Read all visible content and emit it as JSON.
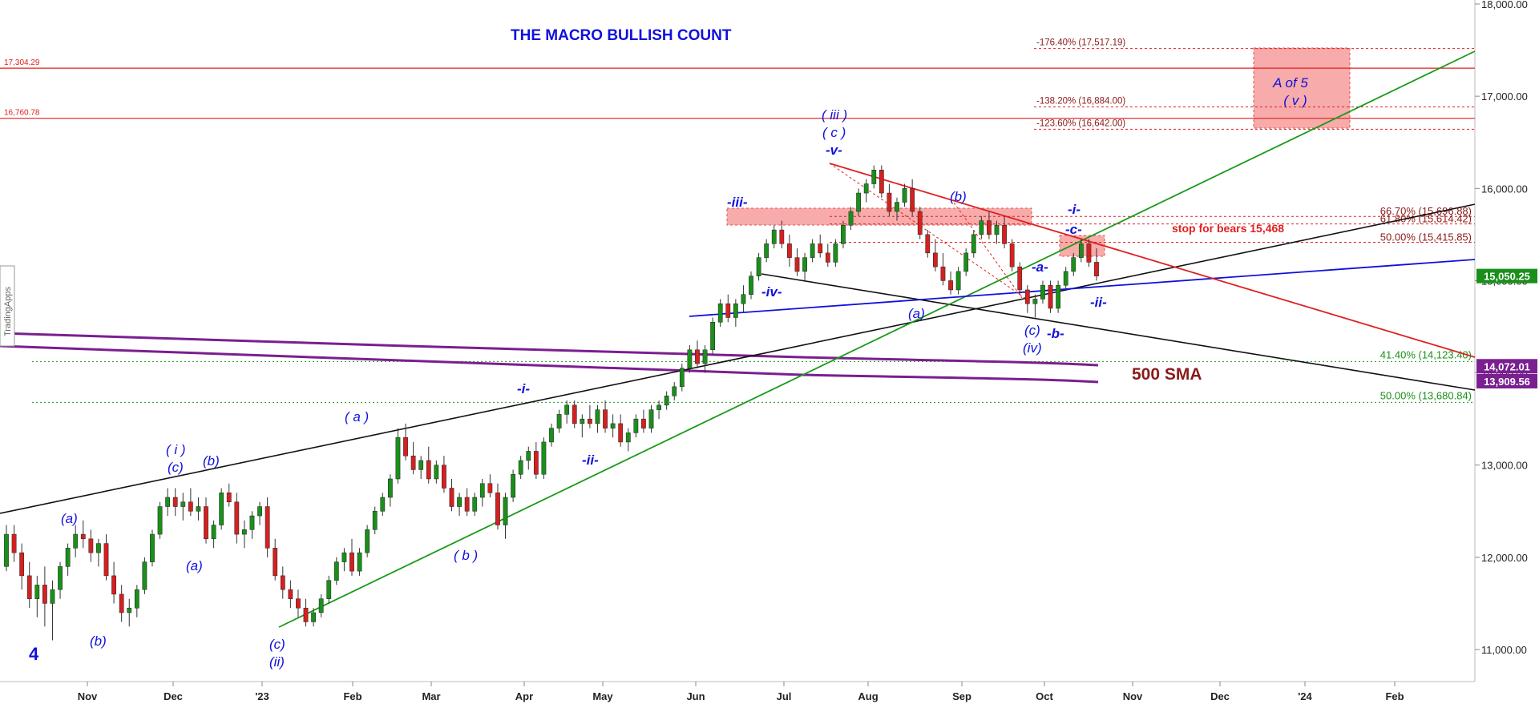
{
  "chart_data": {
    "type": "candlestick",
    "title": "THE MACRO BULLISH COUNT",
    "watermark": "TradingApps",
    "ylim": [
      10700,
      18000
    ],
    "colors": {
      "up": "#1a8f1a",
      "down": "#d42020",
      "wick": "#333333",
      "blue": "#1010dd",
      "red": "#e02020",
      "green": "#1a9a1a",
      "purple": "#7a1f8f",
      "darkred": "#8b1a1a"
    },
    "x_ticks": [
      "Nov",
      "Dec",
      "'23",
      "Feb",
      "Mar",
      "Apr",
      "May",
      "Jun",
      "Jul",
      "Aug",
      "Sep",
      "Oct",
      "Nov",
      "Dec",
      "'24",
      "Feb"
    ],
    "y_ticks": [
      "11,000.00",
      "12,000.00",
      "13,000.00",
      "14,000.00",
      "15,000.00",
      "16,000.00",
      "17,000.00",
      "18,000.00"
    ],
    "y_tick_values": [
      11000,
      12000,
      13000,
      14000,
      15000,
      16000,
      17000,
      18000
    ],
    "price_labels": [
      {
        "text": "15,050.25",
        "value": 15050.25,
        "color": "#1a8f1a"
      },
      {
        "text": "14,072.01",
        "value": 14072.01,
        "color": "#7a1f8f"
      },
      {
        "text": "13,909.56",
        "value": 13909.56,
        "color": "#7a1f8f"
      }
    ],
    "left_levels": [
      {
        "text": "17,304.29",
        "value": 17304.29
      },
      {
        "text": "16,760.78",
        "value": 16760.78
      }
    ],
    "fib_extensions": [
      {
        "text": "-176.40% (17,517.19)",
        "value": 17517.19
      },
      {
        "text": "-138.20% (16,884.00)",
        "value": 16884.0
      },
      {
        "text": "-123.60% (16,642.00)",
        "value": 16642.0
      }
    ],
    "fib_retracements_red": [
      {
        "text": "66.70% (15,696.88)",
        "value": 15696.88
      },
      {
        "text": "61.80% (15,614.42)",
        "value": 15614.42
      },
      {
        "text": "50.00% (15,415.85)",
        "value": 15415.85
      }
    ],
    "fib_retracements_green": [
      {
        "text": "41.40% (14,123.40)",
        "value": 14123.4
      },
      {
        "text": "50.00% (13,680.84)",
        "value": 13680.84
      }
    ],
    "stop_text": "stop for bears 15,468",
    "target_box_text": [
      "A of 5",
      "( v )"
    ],
    "sma_label": "500 SMA",
    "wave_labels": [
      "4",
      "(a)",
      "(b)",
      "( i )",
      "(c)",
      "(b)",
      "(a)",
      "(c)",
      "(ii)",
      "( a )",
      "( b )",
      "-i-",
      "-ii-",
      "-iii-",
      "-iv-",
      "( iii )",
      "( c )",
      "-v-",
      "(a)",
      "(b)",
      "(c)",
      "(iv)",
      "-a-",
      "-b-",
      "-c-",
      "-i-",
      "-ii-"
    ],
    "series": [
      {
        "type": "ohlc",
        "values": [
          [
            11900,
            12350,
            11850,
            12250
          ],
          [
            12250,
            12350,
            11950,
            12050
          ],
          [
            12050,
            12150,
            11650,
            11800
          ],
          [
            11800,
            11950,
            11450,
            11550
          ],
          [
            11550,
            11800,
            11350,
            11700
          ],
          [
            11700,
            11900,
            11250,
            11500
          ],
          [
            11500,
            11750,
            11100,
            11650
          ],
          [
            11650,
            11950,
            11550,
            11900
          ],
          [
            11900,
            12150,
            11800,
            12100
          ],
          [
            12100,
            12350,
            12000,
            12250
          ],
          [
            12250,
            12400,
            12100,
            12200
          ],
          [
            12200,
            12300,
            11950,
            12050
          ],
          [
            12050,
            12200,
            11900,
            12150
          ],
          [
            12150,
            12250,
            11750,
            11800
          ],
          [
            11800,
            11950,
            11500,
            11600
          ],
          [
            11600,
            11700,
            11300,
            11400
          ],
          [
            11400,
            11550,
            11250,
            11450
          ],
          [
            11450,
            11700,
            11350,
            11650
          ],
          [
            11650,
            12000,
            11600,
            11950
          ],
          [
            11950,
            12300,
            11900,
            12250
          ],
          [
            12250,
            12600,
            12200,
            12550
          ],
          [
            12550,
            12750,
            12450,
            12650
          ],
          [
            12650,
            12750,
            12450,
            12550
          ],
          [
            12550,
            12700,
            12400,
            12600
          ],
          [
            12600,
            12750,
            12450,
            12500
          ],
          [
            12500,
            12650,
            12400,
            12550
          ],
          [
            12550,
            12650,
            12150,
            12200
          ],
          [
            12200,
            12400,
            12100,
            12350
          ],
          [
            12350,
            12750,
            12300,
            12700
          ],
          [
            12700,
            12800,
            12550,
            12600
          ],
          [
            12600,
            12700,
            12150,
            12250
          ],
          [
            12250,
            12400,
            12100,
            12300
          ],
          [
            12300,
            12500,
            12200,
            12450
          ],
          [
            12450,
            12600,
            12350,
            12550
          ],
          [
            12550,
            12650,
            12000,
            12100
          ],
          [
            12100,
            12200,
            11750,
            11800
          ],
          [
            11800,
            11900,
            11550,
            11650
          ],
          [
            11650,
            11750,
            11450,
            11550
          ],
          [
            11550,
            11650,
            11350,
            11450
          ],
          [
            11450,
            11550,
            11250,
            11300
          ],
          [
            11300,
            11450,
            11250,
            11400
          ],
          [
            11400,
            11600,
            11350,
            11550
          ],
          [
            11550,
            11800,
            11500,
            11750
          ],
          [
            11750,
            12000,
            11700,
            11950
          ],
          [
            11950,
            12100,
            11850,
            12050
          ],
          [
            12050,
            12200,
            11800,
            11850
          ],
          [
            11850,
            12100,
            11800,
            12050
          ],
          [
            12050,
            12350,
            12000,
            12300
          ],
          [
            12300,
            12550,
            12250,
            12500
          ],
          [
            12500,
            12700,
            12450,
            12650
          ],
          [
            12650,
            12900,
            12550,
            12850
          ],
          [
            12850,
            13400,
            12800,
            13300
          ],
          [
            13300,
            13450,
            13050,
            13100
          ],
          [
            13100,
            13250,
            12900,
            12950
          ],
          [
            12950,
            13100,
            12850,
            13050
          ],
          [
            13050,
            13200,
            12800,
            12850
          ],
          [
            12850,
            13050,
            12800,
            13000
          ],
          [
            13000,
            13100,
            12700,
            12750
          ],
          [
            12750,
            12850,
            12500,
            12550
          ],
          [
            12550,
            12700,
            12450,
            12650
          ],
          [
            12650,
            12750,
            12450,
            12500
          ],
          [
            12500,
            12700,
            12450,
            12650
          ],
          [
            12650,
            12850,
            12550,
            12800
          ],
          [
            12800,
            12900,
            12650,
            12700
          ],
          [
            12700,
            12800,
            12300,
            12350
          ],
          [
            12350,
            12700,
            12200,
            12650
          ],
          [
            12650,
            12950,
            12600,
            12900
          ],
          [
            12900,
            13100,
            12850,
            13050
          ],
          [
            13050,
            13200,
            12950,
            13150
          ],
          [
            13150,
            13250,
            12850,
            12900
          ],
          [
            12900,
            13300,
            12850,
            13250
          ],
          [
            13250,
            13450,
            13200,
            13400
          ],
          [
            13400,
            13600,
            13350,
            13550
          ],
          [
            13550,
            13700,
            13450,
            13650
          ],
          [
            13650,
            13700,
            13400,
            13450
          ],
          [
            13450,
            13550,
            13300,
            13500
          ],
          [
            13500,
            13650,
            13400,
            13450
          ],
          [
            13450,
            13650,
            13350,
            13600
          ],
          [
            13600,
            13700,
            13350,
            13400
          ],
          [
            13400,
            13550,
            13300,
            13450
          ],
          [
            13450,
            13550,
            13200,
            13250
          ],
          [
            13250,
            13400,
            13150,
            13350
          ],
          [
            13350,
            13550,
            13300,
            13500
          ],
          [
            13500,
            13600,
            13350,
            13400
          ],
          [
            13400,
            13650,
            13350,
            13600
          ],
          [
            13600,
            13700,
            13500,
            13650
          ],
          [
            13650,
            13800,
            13600,
            13750
          ],
          [
            13750,
            13900,
            13700,
            13850
          ],
          [
            13850,
            14100,
            13800,
            14050
          ],
          [
            14050,
            14300,
            14000,
            14250
          ],
          [
            14250,
            14350,
            14050,
            14100
          ],
          [
            14100,
            14300,
            14000,
            14250
          ],
          [
            14250,
            14600,
            14200,
            14550
          ],
          [
            14550,
            14800,
            14500,
            14750
          ],
          [
            14750,
            14850,
            14550,
            14600
          ],
          [
            14600,
            14800,
            14500,
            14750
          ],
          [
            14750,
            14950,
            14650,
            14850
          ],
          [
            14850,
            15100,
            14800,
            15050
          ],
          [
            15050,
            15300,
            15000,
            15250
          ],
          [
            15250,
            15450,
            15200,
            15400
          ],
          [
            15400,
            15600,
            15350,
            15550
          ],
          [
            15550,
            15650,
            15350,
            15400
          ],
          [
            15400,
            15500,
            15150,
            15250
          ],
          [
            15250,
            15350,
            15050,
            15100
          ],
          [
            15100,
            15300,
            15000,
            15250
          ],
          [
            15250,
            15450,
            15200,
            15400
          ],
          [
            15400,
            15500,
            15250,
            15300
          ],
          [
            15300,
            15400,
            15150,
            15200
          ],
          [
            15200,
            15450,
            15150,
            15400
          ],
          [
            15400,
            15650,
            15350,
            15600
          ],
          [
            15600,
            15800,
            15550,
            15750
          ],
          [
            15750,
            16000,
            15700,
            15950
          ],
          [
            15950,
            16100,
            15850,
            16050
          ],
          [
            16050,
            16250,
            16000,
            16200
          ],
          [
            16200,
            16250,
            15900,
            15950
          ],
          [
            15950,
            16050,
            15700,
            15750
          ],
          [
            15750,
            15900,
            15650,
            15850
          ],
          [
            15850,
            16050,
            15800,
            16000
          ],
          [
            16000,
            16100,
            15700,
            15750
          ],
          [
            15750,
            15800,
            15450,
            15500
          ],
          [
            15500,
            15550,
            15250,
            15300
          ],
          [
            15300,
            15450,
            15100,
            15150
          ],
          [
            15150,
            15300,
            14950,
            15000
          ],
          [
            15000,
            15100,
            14850,
            14900
          ],
          [
            14900,
            15150,
            14850,
            15100
          ],
          [
            15100,
            15350,
            15050,
            15300
          ],
          [
            15300,
            15550,
            15250,
            15500
          ],
          [
            15500,
            15700,
            15450,
            15650
          ],
          [
            15650,
            15750,
            15450,
            15500
          ],
          [
            15500,
            15650,
            15400,
            15600
          ],
          [
            15600,
            15700,
            15350,
            15400
          ],
          [
            15400,
            15450,
            15100,
            15150
          ],
          [
            15150,
            15200,
            14850,
            14900
          ],
          [
            14900,
            14950,
            14650,
            14750
          ],
          [
            14750,
            14850,
            14600,
            14800
          ],
          [
            14800,
            15000,
            14750,
            14950
          ],
          [
            14950,
            15000,
            14650,
            14700
          ],
          [
            14700,
            15000,
            14650,
            14950
          ],
          [
            14950,
            15150,
            14900,
            15100
          ],
          [
            15100,
            15300,
            15050,
            15250
          ],
          [
            15250,
            15450,
            15200,
            15400
          ],
          [
            15400,
            15450,
            15150,
            15200
          ],
          [
            15200,
            15350,
            15000,
            15050
          ]
        ]
      }
    ]
  }
}
